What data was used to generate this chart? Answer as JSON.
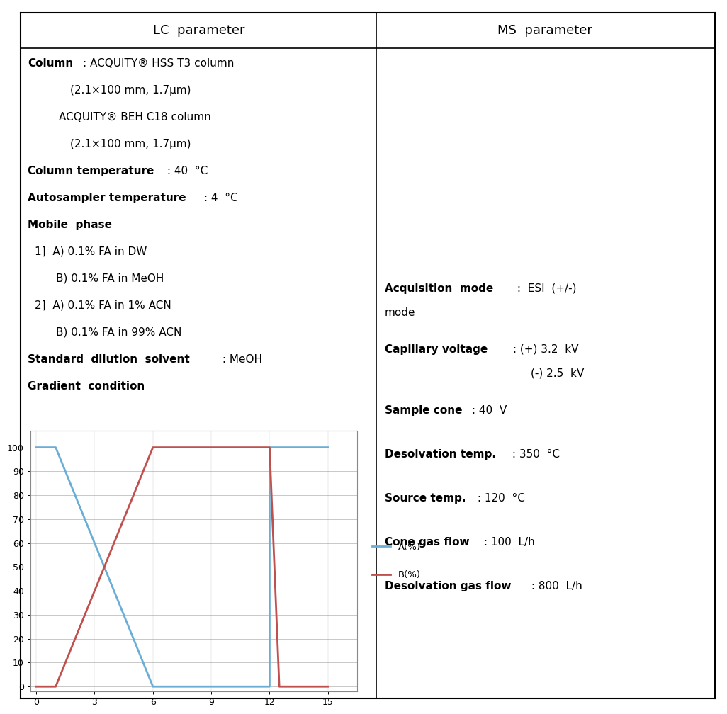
{
  "lc_header": "LC  parameter",
  "ms_header": "MS  parameter",
  "border_color": "#000000",
  "font_color": "#000000",
  "font_family": "DejaVu Sans",
  "font_size": 11.0,
  "header_font_size": 13.0,
  "chart": {
    "A_x": [
      0,
      1,
      6,
      12,
      12,
      15
    ],
    "A_y": [
      100,
      100,
      0,
      0,
      100,
      100
    ],
    "B_x": [
      0,
      1,
      6,
      12,
      12.5,
      15
    ],
    "B_y": [
      0,
      0,
      100,
      100,
      0,
      0
    ],
    "A_color": "#6aaed6",
    "B_color": "#c0504d",
    "xticks": [
      0,
      3,
      6,
      9,
      12,
      15
    ],
    "yticks": [
      0,
      10,
      20,
      30,
      40,
      50,
      60,
      70,
      80,
      90,
      100
    ],
    "ylim": [
      -2,
      107
    ],
    "xlim": [
      -0.3,
      16.5
    ]
  }
}
